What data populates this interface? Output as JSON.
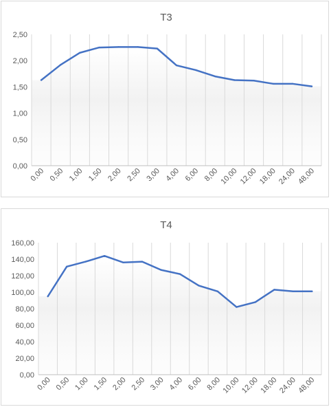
{
  "chart_data": [
    {
      "type": "line",
      "title": "T3",
      "categories": [
        "0,00",
        "0,50",
        "1,00",
        "1,50",
        "2,00",
        "2,50",
        "3,00",
        "4,00",
        "6,00",
        "8,00",
        "10,00",
        "12,00",
        "18,00",
        "24,00",
        "48,00"
      ],
      "values": [
        1.63,
        1.92,
        2.15,
        2.25,
        2.26,
        2.26,
        2.23,
        1.91,
        1.82,
        1.7,
        1.63,
        1.62,
        1.56,
        1.56,
        1.51
      ],
      "ylim": [
        0,
        2.5
      ],
      "yticks": [
        "0,00",
        "0,50",
        "1,00",
        "1,50",
        "2,00",
        "2,50"
      ],
      "ytick_values": [
        0,
        0.5,
        1.0,
        1.5,
        2.0,
        2.5
      ],
      "grid": "vertical",
      "legend": "none",
      "line_color": "#4472c4"
    },
    {
      "type": "line",
      "title": "T4",
      "categories": [
        "0,00",
        "0,50",
        "1,00",
        "1,50",
        "2,00",
        "2,50",
        "3,00",
        "4,00",
        "6,00",
        "8,00",
        "10,00",
        "12,00",
        "18,00",
        "24,00",
        "48,00"
      ],
      "values": [
        95,
        131,
        137,
        144,
        136,
        137,
        127,
        122,
        108,
        101,
        82,
        88,
        103,
        101,
        101
      ],
      "ylim": [
        0,
        160
      ],
      "yticks": [
        "0,00",
        "20,00",
        "40,00",
        "60,00",
        "80,00",
        "100,00",
        "120,00",
        "140,00",
        "160,00"
      ],
      "ytick_values": [
        0,
        20,
        40,
        60,
        80,
        100,
        120,
        140,
        160
      ],
      "grid": "vertical",
      "legend": "none",
      "line_color": "#4472c4"
    }
  ]
}
